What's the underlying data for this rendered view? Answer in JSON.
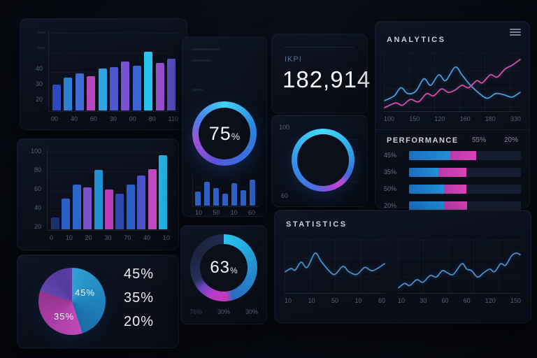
{
  "sections": {
    "statistics_title": "STATISTICS"
  },
  "chart_data": [
    {
      "name": "bar-chart-top-left",
      "type": "bar",
      "y_ticks": [
        "40",
        "30",
        "20"
      ],
      "x_ticks": [
        "00",
        "40",
        "60",
        "30",
        "00",
        "80",
        "110"
      ],
      "values": [
        18,
        23,
        26,
        24,
        29,
        30,
        34,
        31,
        41,
        33,
        36
      ],
      "max": 55,
      "ylim": [
        0,
        55
      ],
      "colors": [
        "#2e49c0",
        "#2e7fd4",
        "#3f6ad8",
        "#b846c0",
        "#2ea4e4",
        "#5056d0",
        "#7a52d4",
        "#3a66d4",
        "#28c4ee",
        "#9a4fd0",
        "#5a55cc"
      ]
    },
    {
      "name": "bar-chart-mid-left",
      "type": "bar",
      "y_ticks": [
        "100",
        "80",
        "60",
        "40",
        "20"
      ],
      "x_ticks": [
        "0",
        "10",
        "20",
        "30",
        "70",
        "40",
        "10"
      ],
      "values": [
        15,
        38,
        56,
        52,
        74,
        50,
        44,
        56,
        67,
        75,
        92
      ],
      "max": 100,
      "ylim": [
        0,
        100
      ],
      "colors": [
        "#1c2f6e",
        "#2b5fc8",
        "#2b66cc",
        "#7a52cc",
        "#2090d0",
        "#b83ab8",
        "#2b49b0",
        "#2b5fc8",
        "#4a52c8",
        "#c24ac0",
        "#24b4e8"
      ]
    },
    {
      "name": "pie-chart",
      "type": "pie",
      "slices": [
        {
          "label": "45%",
          "value": 45,
          "color": "#2492c8"
        },
        {
          "label": "35%",
          "value": 35,
          "color": "#b03aa4"
        },
        {
          "label": "20%",
          "value": 20,
          "color": "#5c3da6"
        }
      ],
      "legend": [
        "45%",
        "35%",
        "20%"
      ],
      "gradient": "#2f9fd4 0deg, #1f7fb8 100deg, #1a6ba6 162deg, #c04ab8 162deg, #a53aa0 240deg, #93348e 288deg, #6246b0 288deg, #54389a 335deg, #5c3da6 360deg"
    },
    {
      "name": "progress-donut",
      "type": "donut",
      "value": 75,
      "value_label": "75",
      "unit": "%",
      "gradient": "#3fd2f2 0deg, #2f8fe8 70deg, #3b6ae0 150deg, #5b54d8 200deg, #8b4fd8 235deg, #a052d8 255deg, #4a7fe8 300deg, #3fd2f2 360deg"
    },
    {
      "name": "mini-bar-chart",
      "type": "bar",
      "values": [
        45,
        75,
        55,
        38,
        72,
        48,
        82
      ],
      "max": 100,
      "color": "#2e5fc4",
      "x_ticks": [
        "10",
        "50",
        "10",
        "60"
      ]
    },
    {
      "name": "kpi",
      "type": "kpi",
      "label": "IKPI",
      "value": "182,914"
    },
    {
      "name": "ring-chart",
      "type": "donut",
      "y_ticks": [
        "100",
        "60"
      ],
      "gradient": "#45d7f7 0deg, #2f9fe8 80deg, #3b6ce0 118deg, #c04ad0 142deg, #a449d8 162deg, #4a6ce0 195deg, #2f8fe8 260deg, #3fc7f2 330deg, #45d7f7 360deg"
    },
    {
      "name": "analytics-line-chart",
      "type": "line",
      "title": "ANALYTICS",
      "x_ticks": [
        "100",
        "150",
        "120",
        "160",
        "180",
        "330"
      ],
      "series": [
        {
          "name": "series-blue",
          "color": "#4a9cd8",
          "points": [
            [
              0,
              18
            ],
            [
              7,
              26
            ],
            [
              12,
              40
            ],
            [
              17,
              30
            ],
            [
              23,
              34
            ],
            [
              29,
              55
            ],
            [
              34,
              44
            ],
            [
              40,
              62
            ],
            [
              45,
              52
            ],
            [
              52,
              75
            ],
            [
              57,
              62
            ],
            [
              63,
              45
            ],
            [
              70,
              30
            ],
            [
              76,
              22
            ],
            [
              82,
              30
            ],
            [
              88,
              28
            ],
            [
              94,
              24
            ],
            [
              100,
              32
            ]
          ]
        },
        {
          "name": "series-pink",
          "color": "#e04aa8",
          "points": [
            [
              0,
              6
            ],
            [
              8,
              14
            ],
            [
              13,
              10
            ],
            [
              19,
              20
            ],
            [
              25,
              16
            ],
            [
              31,
              30
            ],
            [
              36,
              26
            ],
            [
              42,
              38
            ],
            [
              47,
              32
            ],
            [
              52,
              36
            ],
            [
              57,
              44
            ],
            [
              62,
              40
            ],
            [
              68,
              52
            ],
            [
              72,
              48
            ],
            [
              78,
              62
            ],
            [
              83,
              58
            ],
            [
              89,
              72
            ],
            [
              94,
              78
            ],
            [
              100,
              88
            ]
          ]
        }
      ]
    },
    {
      "name": "performance-bars",
      "type": "stacked-bar",
      "title": "PERFORMANCE",
      "header_values": [
        "55%",
        "20%"
      ],
      "colors": {
        "blue": "#2090d4",
        "pink": "#d843b4"
      },
      "rows": [
        {
          "label": "45%",
          "blue": 37,
          "pink": 23
        },
        {
          "label": "35%",
          "blue": 26,
          "pink": 25
        },
        {
          "label": "50%",
          "blue": 31,
          "pink": 20
        },
        {
          "label": "20%",
          "blue": 31,
          "pink": 21
        }
      ]
    },
    {
      "name": "donut-63",
      "type": "donut",
      "value": 63,
      "value_label": "63",
      "unit": "%",
      "x_labels": [
        "76%",
        "30%",
        "30%"
      ],
      "gradient": "#2cc4ee 0deg, #2396d4 85deg, #2a6cc0 162deg, #c43ab8 176deg, #b13ec8 205deg, #6a46c0 228deg, #26305a 244deg, #1b2340 300deg, #202a4c 360deg"
    },
    {
      "name": "statistics-left",
      "type": "line",
      "x_ticks": [
        "10",
        "10",
        "50",
        "10",
        "60"
      ],
      "series": [
        {
          "name": "series-blue",
          "color": "#4a8fc8",
          "points": [
            [
              0,
              40
            ],
            [
              6,
              46
            ],
            [
              10,
              43
            ],
            [
              16,
              58
            ],
            [
              22,
              48
            ],
            [
              30,
              75
            ],
            [
              36,
              60
            ],
            [
              44,
              42
            ],
            [
              50,
              35
            ],
            [
              58,
              50
            ],
            [
              64,
              40
            ],
            [
              72,
              35
            ],
            [
              80,
              48
            ],
            [
              88,
              42
            ],
            [
              100,
              55
            ]
          ]
        }
      ]
    },
    {
      "name": "statistics-right",
      "type": "line",
      "x_ticks": [
        "10",
        "30",
        "60",
        "60",
        "120",
        "150"
      ],
      "series": [
        {
          "name": "series-blue",
          "color": "#4a8fc8",
          "points": [
            [
              0,
              10
            ],
            [
              5,
              18
            ],
            [
              9,
              14
            ],
            [
              15,
              25
            ],
            [
              20,
              20
            ],
            [
              26,
              33
            ],
            [
              31,
              30
            ],
            [
              36,
              42
            ],
            [
              40,
              38
            ],
            [
              45,
              35
            ],
            [
              52,
              55
            ],
            [
              56,
              45
            ],
            [
              60,
              42
            ],
            [
              65,
              30
            ],
            [
              70,
              38
            ],
            [
              75,
              45
            ],
            [
              79,
              40
            ],
            [
              84,
              55
            ],
            [
              88,
              52
            ],
            [
              93,
              70
            ],
            [
              97,
              75
            ],
            [
              100,
              72
            ]
          ]
        }
      ]
    }
  ]
}
